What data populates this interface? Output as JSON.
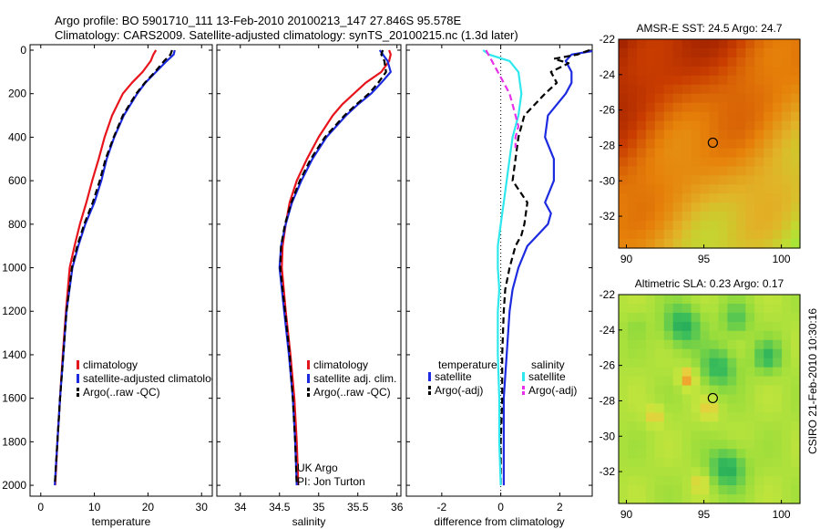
{
  "header": {
    "line1": "Argo profile: BO 5901710_111 13-Feb-2010 20100213_147 27.846S 95.578E",
    "line2": "Climatology: CARS2009. Satellite-adjusted climatology: synTS_20100215.nc (1.3d later)"
  },
  "side_credit": "CSIRO 21-Feb-2010 10:30:16",
  "colors": {
    "climatology": "#e8141c",
    "satellite": "#1c2ae0",
    "argo": "#000000",
    "salinity_satellite": "#2ee8ee",
    "salinity_argo": "#e830e8"
  },
  "chart_data": [
    {
      "type": "line",
      "id": "temperature",
      "xlabel": "temperature",
      "ylabel": "",
      "xlim": [
        -2,
        32
      ],
      "ylim": [
        0,
        2050
      ],
      "xticks": [
        0,
        10,
        20,
        30
      ],
      "yticks": [
        0,
        200,
        400,
        600,
        800,
        1000,
        1200,
        1400,
        1600,
        1800,
        2000
      ],
      "grid": false,
      "series": [
        {
          "name": "climatology",
          "color": "#e8141c",
          "dash": "",
          "width": 2.2,
          "depth": [
            0,
            20,
            50,
            100,
            150,
            200,
            300,
            400,
            500,
            600,
            700,
            800,
            900,
            1000,
            1200,
            1400,
            1600,
            1800,
            2000
          ],
          "values": [
            21.5,
            21.0,
            20.5,
            19.0,
            17.0,
            15.3,
            13.3,
            11.9,
            10.8,
            9.6,
            8.5,
            7.3,
            6.3,
            5.4,
            4.7,
            4.1,
            3.6,
            3.1,
            2.7
          ]
        },
        {
          "name": "satellite-adjusted climatology",
          "color": "#1c2ae0",
          "dash": "",
          "width": 2.2,
          "depth": [
            0,
            20,
            50,
            100,
            150,
            200,
            300,
            400,
            500,
            600,
            700,
            800,
            900,
            1000,
            1200,
            1400,
            1600,
            1800,
            2000
          ],
          "values": [
            25.0,
            24.8,
            23.5,
            21.5,
            19.5,
            18.0,
            15.5,
            13.7,
            12.3,
            11.3,
            10.0,
            8.3,
            7.0,
            5.9,
            4.8,
            4.2,
            3.6,
            3.1,
            2.6
          ]
        },
        {
          "name": "Argo(..raw -QC)",
          "color": "#000000",
          "dash": "7,4",
          "width": 2.2,
          "depth": [
            0,
            20,
            50,
            100,
            150,
            200,
            300,
            400,
            500,
            600,
            700,
            800,
            900,
            1000,
            1200,
            1400,
            1600,
            1800,
            2000
          ],
          "values": [
            24.5,
            24.2,
            23.0,
            21.3,
            19.4,
            17.8,
            15.3,
            13.6,
            12.1,
            11.0,
            9.7,
            8.1,
            6.8,
            5.8,
            4.8,
            4.2,
            3.6,
            3.1,
            2.6
          ]
        }
      ],
      "legend": {
        "placement": "lower-right",
        "entries": [
          "climatology",
          "satellite-adjusted climatology",
          "Argo(..raw -QC)"
        ]
      }
    },
    {
      "type": "line",
      "id": "salinity",
      "xlabel": "salinity",
      "ylabel": "",
      "xlim": [
        33.7,
        36.05
      ],
      "ylim": [
        0,
        2050
      ],
      "xticks": [
        34,
        34.5,
        35,
        35.5,
        36
      ],
      "yticks": [],
      "grid": false,
      "series": [
        {
          "name": "climatology",
          "color": "#e8141c",
          "dash": "",
          "width": 2.2,
          "depth": [
            0,
            20,
            50,
            100,
            150,
            200,
            250,
            300,
            400,
            500,
            600,
            700,
            800,
            900,
            1000,
            1200,
            1400,
            1600,
            1800,
            2000
          ],
          "values": [
            35.9,
            35.92,
            35.9,
            35.8,
            35.6,
            35.45,
            35.3,
            35.18,
            35.0,
            34.85,
            34.72,
            34.63,
            34.58,
            34.54,
            34.53,
            34.58,
            34.64,
            34.69,
            34.72,
            34.74
          ]
        },
        {
          "name": "satellite adj. clim.",
          "color": "#1c2ae0",
          "dash": "",
          "width": 2.2,
          "depth": [
            0,
            20,
            50,
            100,
            150,
            200,
            250,
            300,
            400,
            500,
            600,
            700,
            800,
            900,
            1000,
            1200,
            1400,
            1600,
            1800,
            2000
          ],
          "values": [
            35.78,
            35.82,
            35.88,
            35.92,
            35.8,
            35.67,
            35.5,
            35.35,
            35.1,
            34.92,
            34.78,
            34.66,
            34.58,
            34.52,
            34.5,
            34.56,
            34.62,
            34.67,
            34.7,
            34.72
          ]
        },
        {
          "name": "Argo(..raw -QC)",
          "color": "#000000",
          "dash": "7,4",
          "width": 2.2,
          "depth": [
            0,
            20,
            50,
            100,
            150,
            200,
            250,
            300,
            400,
            500,
            600,
            700,
            800,
            900,
            1000,
            1200,
            1400,
            1600,
            1800,
            2000
          ],
          "values": [
            35.82,
            35.8,
            35.84,
            35.86,
            35.76,
            35.64,
            35.48,
            35.33,
            35.08,
            34.9,
            34.76,
            34.65,
            34.57,
            34.52,
            34.51,
            34.57,
            34.63,
            34.67,
            34.7,
            34.72
          ]
        }
      ],
      "legend": {
        "placement": "lower-right",
        "entries": [
          "climatology",
          "satellite adj. clim.",
          "Argo(..raw -QC)"
        ]
      },
      "annotations": [
        "UK Argo",
        "PI: Jon Turton"
      ]
    },
    {
      "type": "line",
      "id": "difference",
      "xlabel": "difference from climatology",
      "ylabel": "",
      "xlim": [
        -3.2,
        3.1
      ],
      "ylim": [
        0,
        2050
      ],
      "xticks": [
        -2,
        0,
        2
      ],
      "yticks": [],
      "zero_line": "dotted",
      "grid": false,
      "series": [
        {
          "name": "temperature satellite",
          "color": "#1c2ae0",
          "dash": "",
          "width": 2.2,
          "depth": [
            0,
            20,
            50,
            100,
            150,
            200,
            300,
            400,
            500,
            600,
            700,
            750,
            800,
            900,
            1000,
            1100,
            1200,
            1400,
            1600,
            1800,
            2000
          ],
          "values": [
            3.3,
            2.4,
            2.2,
            2.4,
            2.4,
            2.2,
            1.6,
            1.5,
            1.8,
            1.8,
            1.5,
            1.7,
            1.6,
            0.9,
            0.6,
            0.4,
            0.3,
            0.2,
            0.1,
            0.1,
            0.1
          ]
        },
        {
          "name": "temperature Argo(-adj)",
          "color": "#000000",
          "dash": "7,4",
          "width": 2.2,
          "depth": [
            0,
            20,
            40,
            60,
            100,
            150,
            200,
            300,
            400,
            500,
            600,
            700,
            800,
            850,
            900,
            1000,
            1100,
            1200,
            1400,
            1600,
            1800,
            2000
          ],
          "values": [
            3.0,
            2.6,
            1.8,
            2.3,
            1.7,
            1.9,
            1.5,
            0.8,
            0.6,
            0.5,
            0.4,
            0.9,
            0.8,
            0.7,
            0.5,
            0.3,
            0.15,
            0.1,
            0.05,
            0.05,
            0.0,
            0.0
          ]
        },
        {
          "name": "salinity satellite",
          "color": "#2ee8ee",
          "dash": "",
          "width": 2.2,
          "depth": [
            0,
            20,
            50,
            100,
            200,
            300,
            400,
            500,
            600,
            700,
            800,
            900,
            1000,
            1100,
            1200,
            1400,
            1600,
            1800,
            2000
          ],
          "values": [
            -0.6,
            -0.4,
            0.3,
            0.6,
            0.7,
            0.6,
            0.4,
            0.3,
            0.2,
            0.1,
            0.0,
            -0.1,
            -0.1,
            -0.05,
            -0.1,
            -0.1,
            -0.05,
            -0.05,
            0.0
          ]
        },
        {
          "name": "salinity Argo(-adj)",
          "color": "#e830e8",
          "dash": "7,4",
          "width": 2.2,
          "depth": [
            0,
            50,
            100,
            150,
            200,
            250,
            300,
            350,
            400,
            450
          ],
          "values": [
            -0.5,
            -0.3,
            -0.1,
            0.1,
            0.3,
            0.4,
            0.5,
            0.6,
            0.5,
            0.5
          ]
        }
      ],
      "legend": {
        "placement": "lower-center",
        "headers": [
          "temperature",
          "salinity"
        ],
        "entries": [
          "satellite",
          "Argo(-adj)",
          "satellite",
          "Argo(-adj)"
        ]
      }
    },
    {
      "type": "heatmap",
      "id": "amsr-sst",
      "title": "AMSR-E SST: 24.5 Argo: 24.7",
      "xlim": [
        89.5,
        101.2
      ],
      "ylim": [
        -33.8,
        -22
      ],
      "xticks": [
        90,
        95,
        100
      ],
      "yticks": [
        -22,
        -24,
        -26,
        -28,
        -30,
        -32
      ],
      "colormap": "red-orange-yellow-green",
      "marker": {
        "lon": 95.578,
        "lat": -27.846
      }
    },
    {
      "type": "heatmap",
      "id": "altimetric-sla",
      "title": "Altimetric SLA: 0.23 Argo: 0.17",
      "xlim": [
        89.5,
        101.2
      ],
      "ylim": [
        -33.8,
        -22
      ],
      "xticks": [
        90,
        95,
        100
      ],
      "yticks": [
        -22,
        -24,
        -26,
        -28,
        -30,
        -32
      ],
      "colormap": "green-yellow-orange",
      "marker": {
        "lon": 95.578,
        "lat": -27.846
      }
    }
  ]
}
